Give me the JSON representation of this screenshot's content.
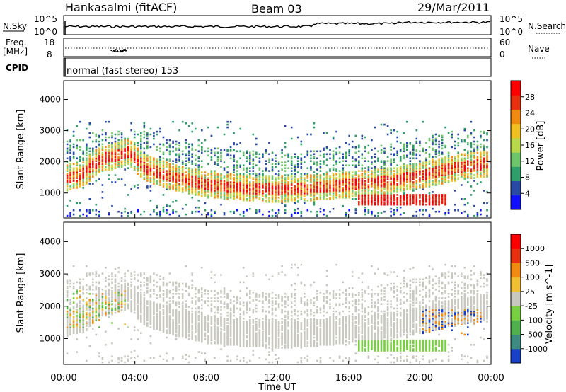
{
  "header": {
    "station": "Hankasalmi (fitACF)",
    "beam": "Beam 03",
    "date": "29/Mar/2011"
  },
  "summary_labels": {
    "nsky": "N.Sky",
    "nsearch": "N.Search",
    "freq_line1": "Freq.",
    "freq_line2": "[MHz]",
    "nave": "Nave",
    "cpid": "CPID",
    "cpid_value": "normal (fast stereo) 153",
    "noise_top": "10^5",
    "noise_bottom": "10^0",
    "freq_top": "18",
    "freq_bottom": "8",
    "nave_top": "60",
    "nave_bottom": "0"
  },
  "chart_data": [
    {
      "type": "heatmap",
      "name": "power",
      "xlabel": "Time UT",
      "ylabel": "Slant Range [km]",
      "xlim": [
        0,
        24
      ],
      "ylim": [
        200,
        4600
      ],
      "x_ticks": [
        "00:00",
        "04:00",
        "08:00",
        "12:00",
        "16:00",
        "20:00",
        "00:00"
      ],
      "y_ticks": [
        "1000",
        "2000",
        "3000",
        "4000"
      ],
      "colorbar_label": "Power [dB]",
      "colorbar_ticks": [
        "4",
        "8",
        "12",
        "16",
        "20",
        "24",
        "28"
      ],
      "colorbar_colors": [
        "#1010ff",
        "#2a4aa8",
        "#2e9e6a",
        "#6ec46a",
        "#b8d84a",
        "#f0c020",
        "#f08a10",
        "#e83010",
        "#ff0000"
      ],
      "ridges": [
        {
          "t": 0.0,
          "r": 1450
        },
        {
          "t": 1.0,
          "r": 1600
        },
        {
          "t": 2.0,
          "r": 2050
        },
        {
          "t": 3.0,
          "r": 2200
        },
        {
          "t": 3.6,
          "r": 2300
        },
        {
          "t": 4.5,
          "r": 1800
        },
        {
          "t": 6.0,
          "r": 1500
        },
        {
          "t": 8.0,
          "r": 1250
        },
        {
          "t": 10.0,
          "r": 1150
        },
        {
          "t": 12.0,
          "r": 1100
        },
        {
          "t": 14.0,
          "r": 1150
        },
        {
          "t": 16.0,
          "r": 1250
        },
        {
          "t": 18.0,
          "r": 1350
        },
        {
          "t": 20.0,
          "r": 1550
        },
        {
          "t": 22.0,
          "r": 1800
        },
        {
          "t": 24.0,
          "r": 1950
        }
      ]
    },
    {
      "type": "heatmap",
      "name": "velocity",
      "xlabel": "Time UT",
      "ylabel": "Slant Range [km]",
      "xlim": [
        0,
        24
      ],
      "ylim": [
        200,
        4600
      ],
      "x_ticks": [
        "00:00",
        "04:00",
        "08:00",
        "12:00",
        "16:00",
        "20:00",
        "00:00"
      ],
      "y_ticks": [
        "1000",
        "2000",
        "3000",
        "4000"
      ],
      "colorbar_label": "Velocity [m s^-1]",
      "colorbar_ticks": [
        "1000",
        "500",
        "100",
        "25",
        "-25",
        "-100",
        "-500",
        "-1000"
      ],
      "colorbar_colors": [
        "#1840c8",
        "#3c8a82",
        "#50b050",
        "#78d040",
        "#c8c8c0",
        "#f0c030",
        "#f08a10",
        "#e83010",
        "#ff0000"
      ]
    }
  ]
}
